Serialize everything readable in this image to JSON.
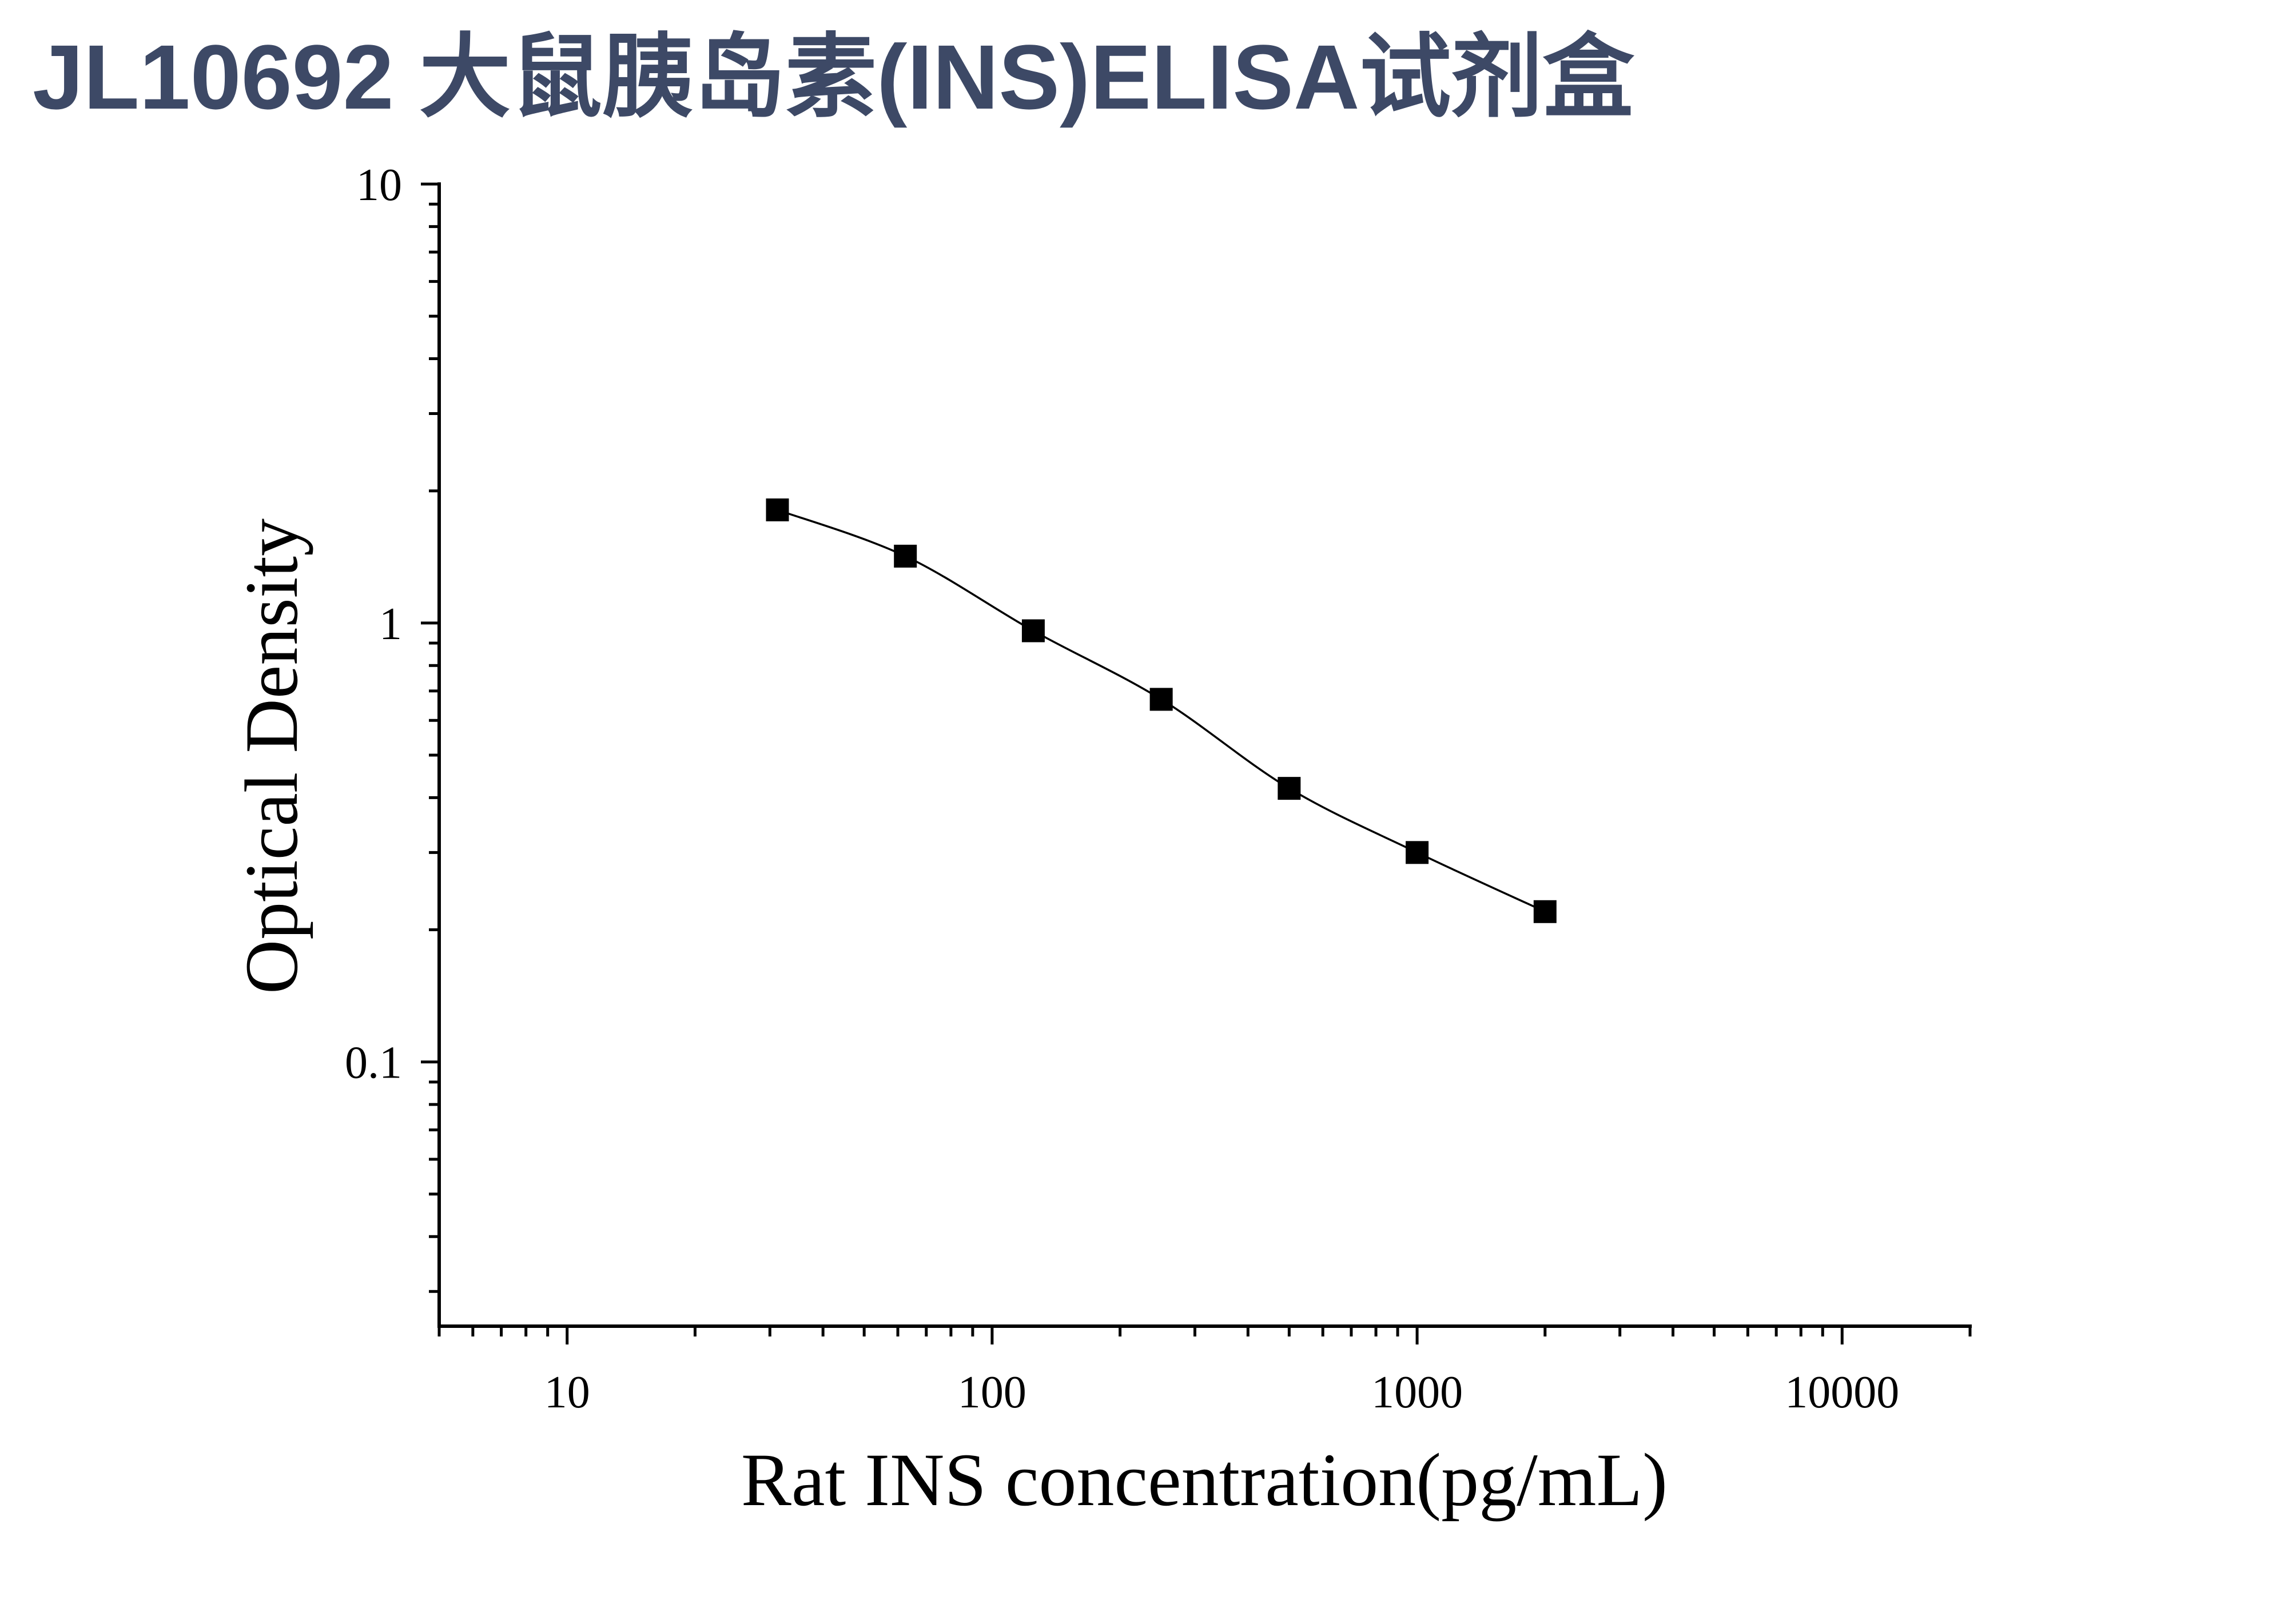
{
  "colors": {
    "title": "#3d4966",
    "axis": "#000000",
    "marker": "#000000",
    "curve": "#000000",
    "background": "#ffffff"
  },
  "chart_data": {
    "type": "scatter",
    "title": "JL10692 大鼠胰岛素(INS)ELISA试剂盒",
    "xlabel": "Rat INS concentration(pg/mL)",
    "ylabel": "Optical Density",
    "xscale": "log",
    "yscale": "log",
    "xlim": [
      5,
      20000
    ],
    "ylim": [
      0.025,
      10
    ],
    "xticks": [
      10,
      100,
      1000,
      10000
    ],
    "xtick_labels": [
      "10",
      "100",
      "1000",
      "10000"
    ],
    "yticks": [
      0.1,
      1,
      10
    ],
    "ytick_labels": [
      "0.1",
      "1",
      "10"
    ],
    "grid": false,
    "legend": "none",
    "series": [
      {
        "marker": "square",
        "line": "smooth curve",
        "x": [
          31.25,
          62.5,
          125,
          250,
          500,
          1000,
          2000
        ],
        "y": [
          1.81,
          1.42,
          0.96,
          0.67,
          0.42,
          0.3,
          0.22
        ]
      }
    ]
  }
}
